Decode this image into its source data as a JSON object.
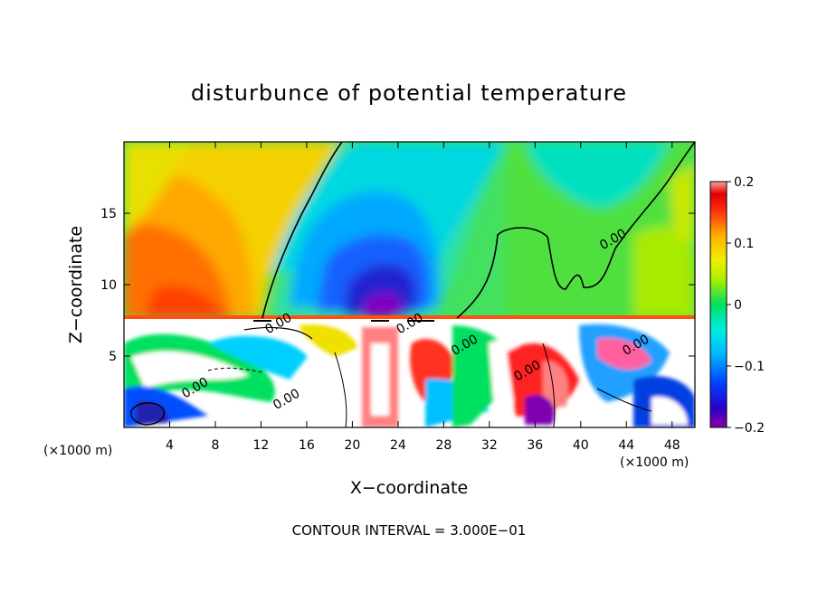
{
  "chart_data": {
    "type": "heatmap",
    "title": "disturbunce of potential temperature",
    "xlabel": "X−coordinate",
    "ylabel": "Z−coordinate",
    "x_unit_left": "(×1000 m)",
    "x_unit_right": "(×1000 m)",
    "xlim": [
      0,
      50
    ],
    "ylim": [
      0,
      20
    ],
    "xticks": [
      4,
      8,
      12,
      16,
      20,
      24,
      28,
      32,
      36,
      40,
      44,
      48
    ],
    "yticks": [
      5,
      10,
      15
    ],
    "colorbar": {
      "range": [
        -0.2,
        0.2
      ],
      "ticks": [
        {
          "value": 0.2,
          "label": "0.2"
        },
        {
          "value": 0.1,
          "label": "0.1"
        },
        {
          "value": 0,
          "label": "0"
        },
        {
          "value": -0.1,
          "label": "−0.1"
        },
        {
          "value": -0.2,
          "label": "−0.2"
        }
      ]
    },
    "contour_labels": [
      {
        "x": 42.8,
        "z": 13.2,
        "text": "0.00"
      },
      {
        "x": 13.5,
        "z": 7.3,
        "text": "0.00"
      },
      {
        "x": 25.0,
        "z": 7.3,
        "text": "0.00"
      },
      {
        "x": 29.8,
        "z": 5.8,
        "text": "0.00"
      },
      {
        "x": 35.3,
        "z": 4.0,
        "text": "0.00"
      },
      {
        "x": 44.8,
        "z": 5.8,
        "text": "0.00"
      },
      {
        "x": 6.2,
        "z": 2.8,
        "text": "0.00"
      },
      {
        "x": 14.2,
        "z": 2.0,
        "text": "0.00"
      }
    ],
    "footer": "CONTOUR INTERVAL = 3.000E−01"
  }
}
